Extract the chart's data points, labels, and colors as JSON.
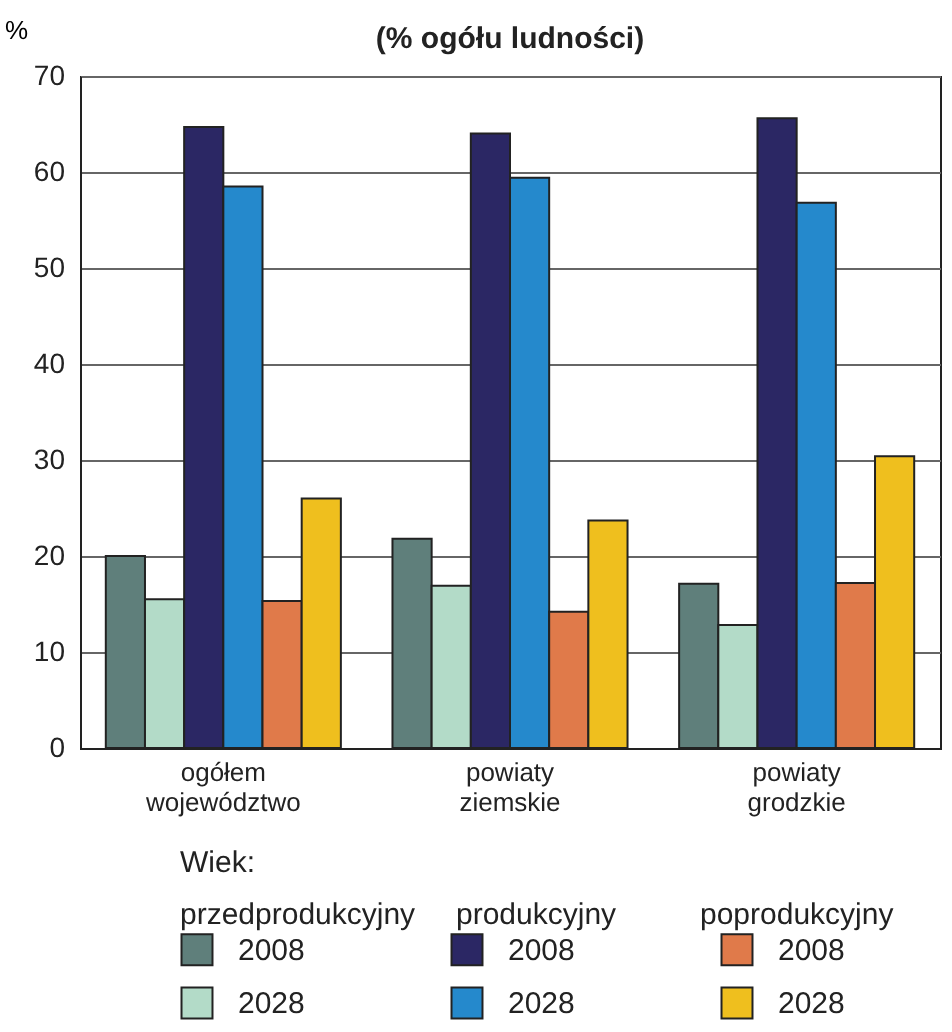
{
  "chart_data": {
    "type": "bar",
    "title": "(% ogółu ludności)",
    "ylabel": "%",
    "legend_title": "Wiek:",
    "legend": "bottom",
    "grid": "y",
    "annotations": [
      "przedprodukcyjny",
      "produkcyjny",
      "poprodukcyjny"
    ],
    "categories": [
      "ogółem województwo",
      "powiaty ziemskie",
      "powiaty grodzkie"
    ],
    "ylim": [
      0,
      70
    ],
    "yticks": [
      0,
      10,
      20,
      30,
      40,
      50,
      60,
      70
    ],
    "series": [
      {
        "name": "2008",
        "color": "#5f7f7b",
        "values": [
          20.0,
          21.8,
          17.1
        ]
      },
      {
        "name": "2028",
        "color": "#b3dbc8",
        "values": [
          15.5,
          16.9,
          12.8
        ]
      },
      {
        "name": "2008",
        "color": "#2b2764",
        "values": [
          64.7,
          64.0,
          65.6
        ]
      },
      {
        "name": "2028",
        "color": "#2589cc",
        "values": [
          58.5,
          59.4,
          56.8
        ]
      },
      {
        "name": "2008",
        "color": "#e07a4a",
        "values": [
          15.3,
          14.2,
          17.2
        ]
      },
      {
        "name": "2028",
        "color": "#efbf1e",
        "values": [
          26.0,
          23.7,
          30.4
        ]
      }
    ]
  }
}
